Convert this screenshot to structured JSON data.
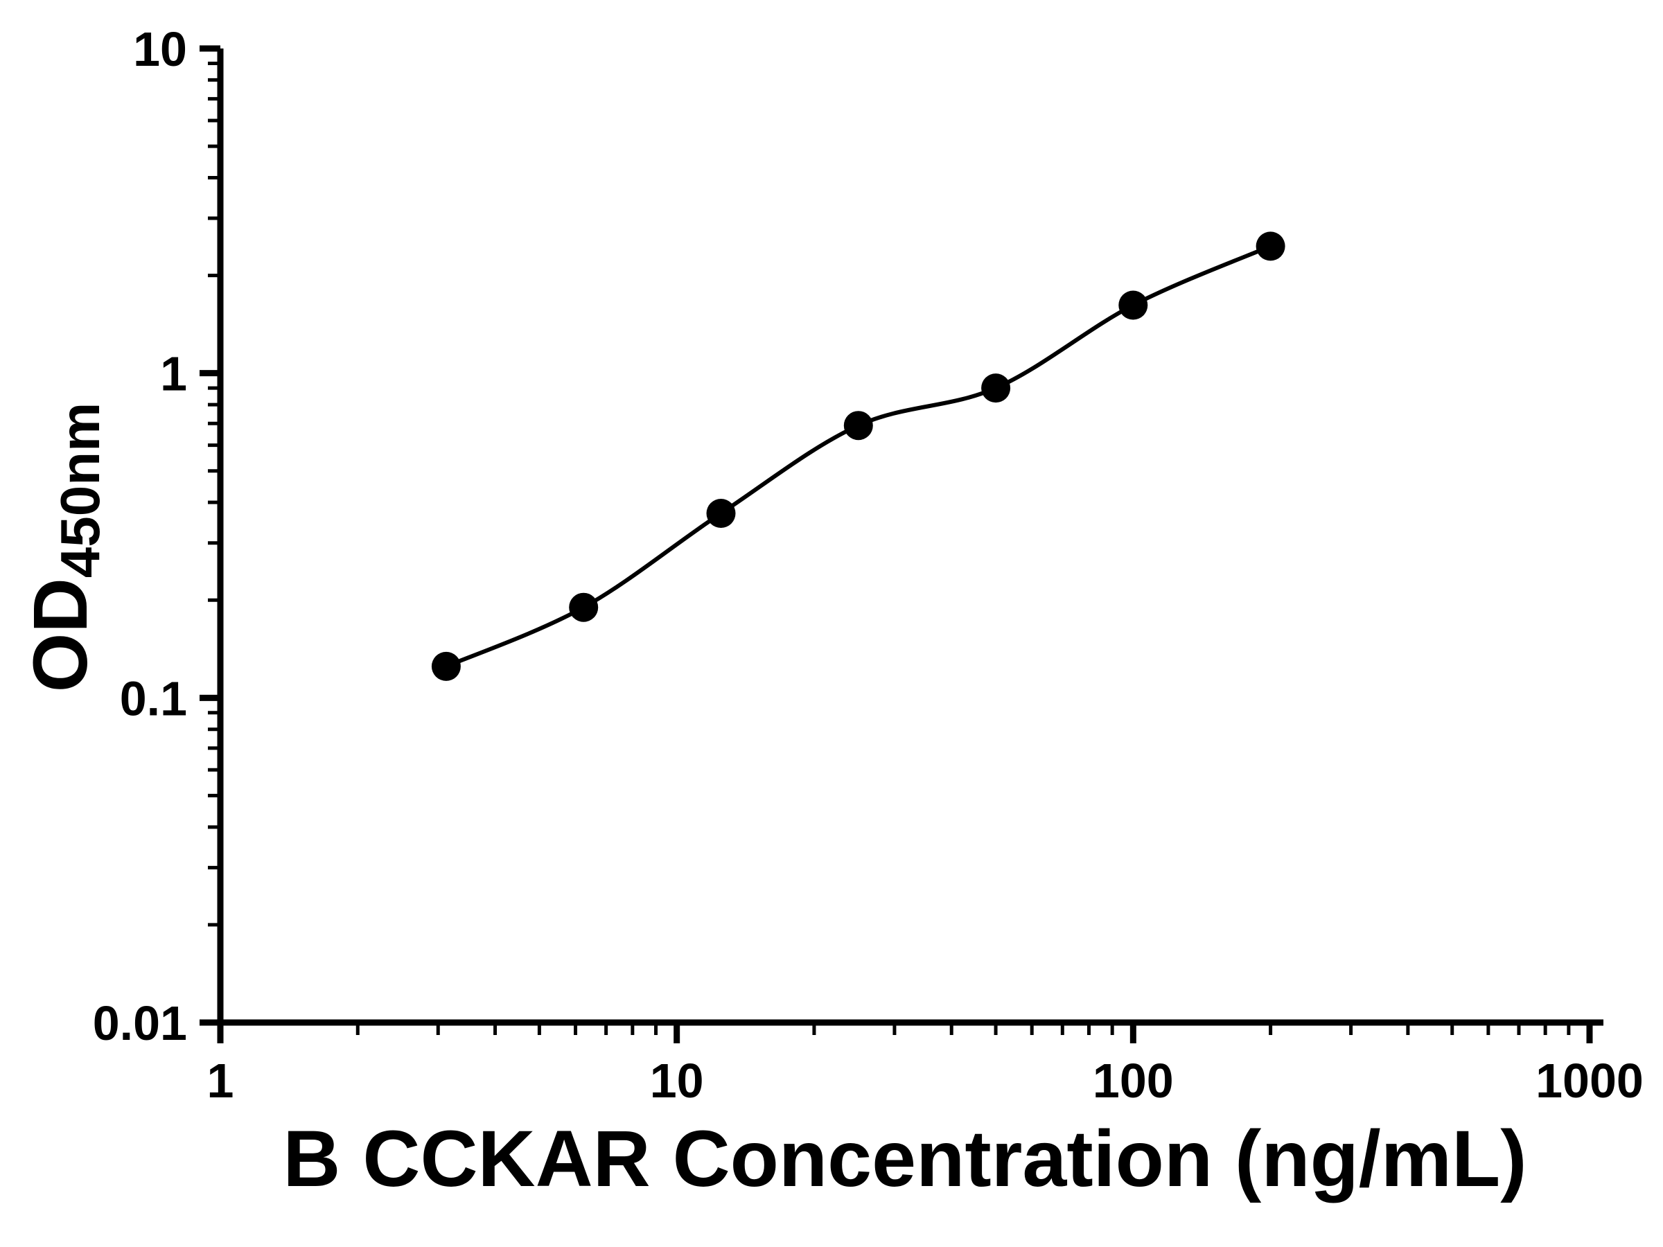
{
  "chart_data": {
    "type": "scatter",
    "subtype": "elisa-standard-curve",
    "title": "",
    "xlabel": "B CCKAR Concentration (ng/mL)",
    "ylabel": "OD",
    "ylabel_subscript": "450nm",
    "x_scale": "log10",
    "y_scale": "log10",
    "xlim": [
      1,
      1000
    ],
    "ylim": [
      0.01,
      10
    ],
    "x_ticks": [
      "1",
      "10",
      "100",
      "1000"
    ],
    "y_ticks": [
      "0.01",
      "0.1",
      "1",
      "10"
    ],
    "x_minor_ticks": true,
    "y_minor_ticks": true,
    "grid": false,
    "legend": "none",
    "x": [
      3.125,
      6.25,
      12.5,
      25,
      50,
      100,
      200
    ],
    "y": [
      0.125,
      0.19,
      0.37,
      0.69,
      0.9,
      1.62,
      2.46
    ],
    "marker": "filled-circle",
    "line": "smooth-curve-through-points"
  },
  "colors": {
    "axis": "#000000",
    "marker": "#000000",
    "curve": "#000000",
    "text": "#000000",
    "background": "#ffffff"
  }
}
